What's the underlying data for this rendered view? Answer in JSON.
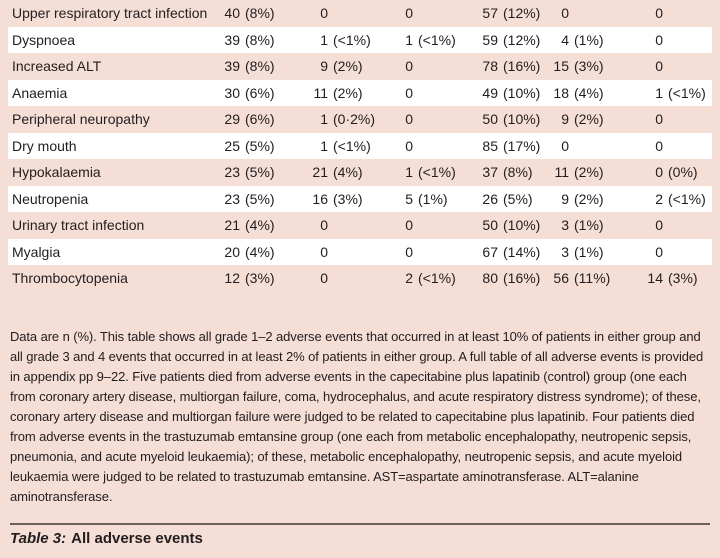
{
  "page": {
    "colors": {
      "bg": "#f5ded6",
      "rowbg": "#ffffff",
      "fg": "#221d1e",
      "rule": "#6c6157"
    }
  },
  "table": {
    "rows": [
      {
        "label": "Upper respiratory tract infection",
        "values": [
          "40 (8%)",
          "0",
          "0",
          "57 (12%)",
          "0",
          "0"
        ]
      },
      {
        "label": "Dyspnoea",
        "values": [
          "39 (8%)",
          "1 (<1%)",
          "1 (<1%)",
          "59 (12%)",
          "4 (1%)",
          "0"
        ]
      },
      {
        "label": "Increased ALT",
        "values": [
          "39 (8%)",
          "9 (2%)",
          "0",
          "78 (16%)",
          "15 (3%)",
          "0"
        ]
      },
      {
        "label": "Anaemia",
        "values": [
          "30 (6%)",
          "11 (2%)",
          "0",
          "49 (10%)",
          "18 (4%)",
          "1 (<1%)"
        ]
      },
      {
        "label": "Peripheral neuropathy",
        "values": [
          "29 (6%)",
          "1 (0·2%)",
          "0",
          "50 (10%)",
          "9 (2%)",
          "0"
        ]
      },
      {
        "label": "Dry mouth",
        "values": [
          "25 (5%)",
          "1 (<1%)",
          "0",
          "85 (17%)",
          "0",
          "0"
        ]
      },
      {
        "label": "Hypokalaemia",
        "values": [
          "23 (5%)",
          "21 (4%)",
          "1 (<1%)",
          "37 (8%)",
          "11 (2%)",
          "0 (0%)"
        ]
      },
      {
        "label": "Neutropenia",
        "values": [
          "23 (5%)",
          "16 (3%)",
          "5 (1%)",
          "26 (5%)",
          "9 (2%)",
          "2 (<1%)"
        ]
      },
      {
        "label": "Urinary tract infection",
        "values": [
          "21 (4%)",
          "0",
          "0",
          "50 (10%)",
          "3 (1%)",
          "0"
        ]
      },
      {
        "label": "Myalgia",
        "values": [
          "20 (4%)",
          "0",
          "0",
          "67 (14%)",
          "3 (1%)",
          "0"
        ]
      },
      {
        "label": "Thrombocytopenia",
        "values": [
          "12 (3%)",
          "0",
          "2 (<1%)",
          "80 (16%)",
          "56 (11%)",
          "14 (3%)"
        ]
      }
    ],
    "footnote": "Data are n (%). This table shows all grade 1–2 adverse events that occurred in at least 10% of patients in either group and all grade 3 and 4 events that occurred in at least 2% of patients in either group. A full table of all adverse events is provided in appendix pp 9–22. Five patients died from adverse events in the capecitabine plus lapatinib (control) group (one each from coronary artery disease, multiorgan failure, coma, hydrocephalus, and acute respiratory distress syndrome); of these, coronary artery disease and multiorgan failure were judged to be related to capecitabine plus lapatinib. Four patients died from adverse events in the trastuzumab emtansine group (one each from metabolic encephalopathy, neutropenic sepsis, pneumonia, and acute myeloid leukaemia); of these, metabolic encephalopathy, neutropenic sepsis, and acute myeloid leukaemia were judged to be related to trastuzumab emtansine. AST=aspartate aminotransferase. ALT=alanine aminotransferase.",
    "caption_label": "Table 3:",
    "caption_title": "All adverse events"
  }
}
